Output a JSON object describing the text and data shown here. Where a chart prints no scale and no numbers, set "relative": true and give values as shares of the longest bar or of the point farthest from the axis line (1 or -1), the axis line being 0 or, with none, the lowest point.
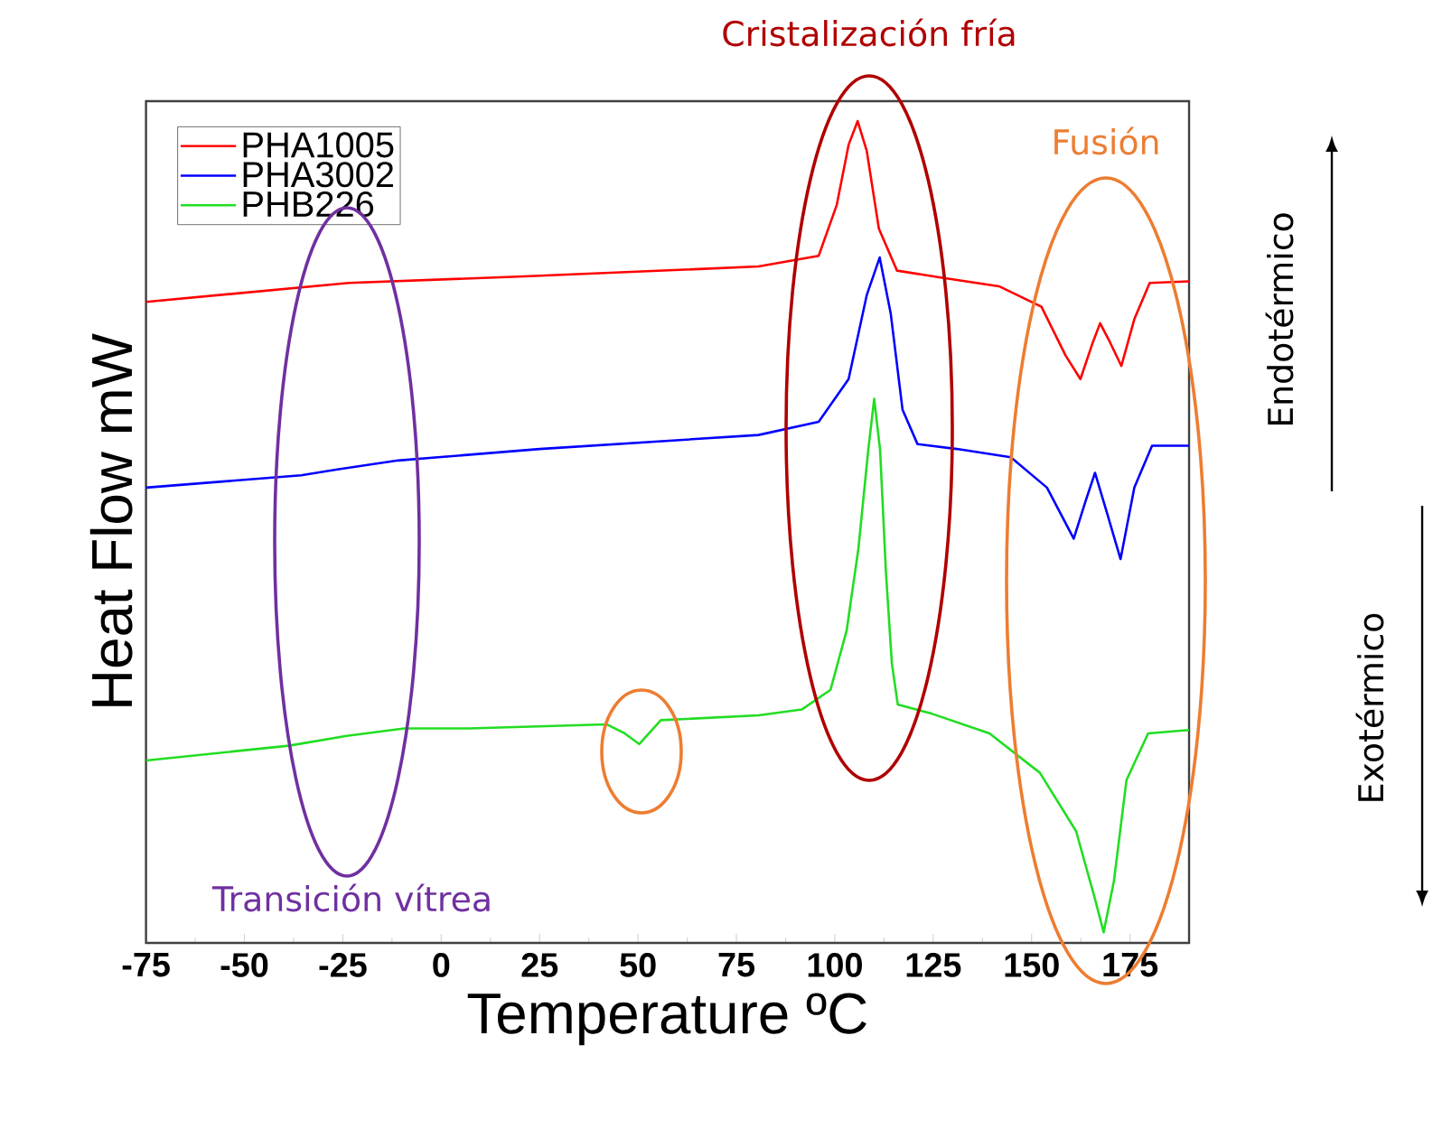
{
  "chart_data": {
    "type": "line",
    "xlabel": "Temperature ºC",
    "ylabel": "Heat Flow mW",
    "relative": true,
    "xlim": [
      -75,
      190
    ],
    "xticks": [
      -75,
      -50,
      -25,
      0,
      25,
      50,
      75,
      100,
      125,
      150,
      175
    ],
    "legend": "top left",
    "annotations": [
      "Cristalización fría",
      "Fusión",
      "Transición vítrea",
      "Endotérmico",
      "Exotérmico"
    ],
    "series": [
      {
        "name": "PHA1005",
        "color": "#ff0000",
        "x": [
          -75,
          -23.5,
          21,
          80.6,
          95.9,
          100.5,
          103.5,
          105.8,
          108.1,
          111.2,
          115.8,
          126.5,
          141.7,
          152.5,
          158.6,
          162.4,
          165.5,
          167.4,
          170,
          172.8,
          176.1,
          180,
          190
        ],
        "values": [
          0.78,
          0.803,
          0.811,
          0.823,
          0.836,
          0.898,
          0.971,
          1.0,
          0.964,
          0.869,
          0.818,
          0.81,
          0.799,
          0.774,
          0.715,
          0.686,
          0.73,
          0.754,
          0.73,
          0.702,
          0.759,
          0.803,
          0.805
        ]
      },
      {
        "name": "PHA3002",
        "color": "#0000ff",
        "x": [
          -75,
          -35.6,
          -26.4,
          -11,
          25,
          80.6,
          95.9,
          103.5,
          108.1,
          111.4,
          114.2,
          117.2,
          121,
          131,
          144.7,
          153.9,
          160.7,
          163.8,
          166.1,
          169.1,
          172.6,
          176.1,
          180.6,
          190
        ],
        "values": [
          0.554,
          0.569,
          0.576,
          0.587,
          0.601,
          0.618,
          0.634,
          0.686,
          0.788,
          0.834,
          0.766,
          0.649,
          0.607,
          0.601,
          0.591,
          0.554,
          0.492,
          0.539,
          0.572,
          0.524,
          0.467,
          0.554,
          0.605,
          0.605
        ]
      },
      {
        "name": "PHB226",
        "color": "#22dd22",
        "x": [
          -75,
          -38.7,
          -24,
          -9.4,
          7.1,
          42,
          46.6,
          50.3,
          55.8,
          80.6,
          91.6,
          98.9,
          103,
          106,
          108.5,
          110,
          111.5,
          113,
          114.5,
          116,
          124.6,
          139.3,
          152.1,
          161.3,
          165.9,
          168.3,
          170.9,
          174.1,
          179.6,
          190
        ],
        "values": [
          0.222,
          0.24,
          0.252,
          0.261,
          0.261,
          0.266,
          0.255,
          0.242,
          0.271,
          0.277,
          0.284,
          0.308,
          0.38,
          0.48,
          0.6,
          0.662,
          0.6,
          0.45,
          0.34,
          0.29,
          0.279,
          0.255,
          0.207,
          0.136,
          0.057,
          0.013,
          0.075,
          0.198,
          0.255,
          0.259
        ]
      }
    ]
  }
}
